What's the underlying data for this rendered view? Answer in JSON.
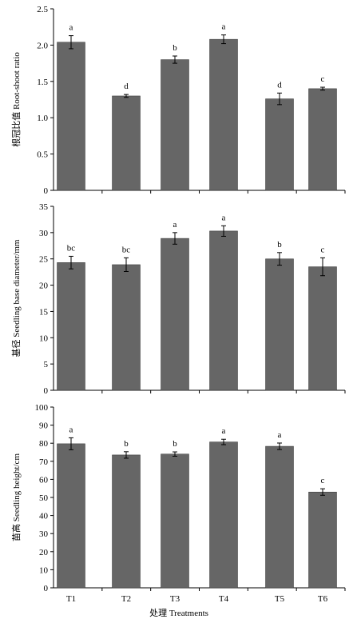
{
  "colors": {
    "bar": "#666666",
    "axis": "#000000",
    "error_bar": "#000000"
  },
  "chart_data": [
    {
      "type": "bar",
      "title": "",
      "categories": [
        "T1",
        "T2",
        "T3",
        "T4",
        "T5",
        "T6"
      ],
      "values": [
        2.04,
        1.3,
        1.8,
        2.08,
        1.26,
        1.4
      ],
      "errors": [
        0.09,
        0.02,
        0.05,
        0.06,
        0.08,
        0.02
      ],
      "significance": [
        "a",
        "d",
        "b",
        "a",
        "d",
        "c"
      ],
      "xlabel": "",
      "ylabel": "根冠比值 Root-shoot ratio",
      "ylim": [
        0,
        2.5
      ],
      "yticks": [
        "0",
        "0.5",
        "1.0",
        "1.5",
        "2.0",
        "2.5"
      ],
      "show_x_tick_labels": false
    },
    {
      "type": "bar",
      "title": "",
      "categories": [
        "T1",
        "T2",
        "T3",
        "T4",
        "T5",
        "T6"
      ],
      "values": [
        24.3,
        23.9,
        28.9,
        30.3,
        25.0,
        23.5
      ],
      "errors": [
        1.2,
        1.3,
        1.1,
        1.0,
        1.2,
        1.7
      ],
      "significance": [
        "bc",
        "bc",
        "a",
        "a",
        "b",
        "c"
      ],
      "xlabel": "",
      "ylabel": "基径 Seedling base diameter/mm",
      "ylim": [
        0,
        35
      ],
      "yticks": [
        "0",
        "5",
        "10",
        "15",
        "20",
        "25",
        "30",
        "35"
      ],
      "show_x_tick_labels": false
    },
    {
      "type": "bar",
      "title": "",
      "categories": [
        "T1",
        "T2",
        "T3",
        "T4",
        "T5",
        "T6"
      ],
      "values": [
        79.7,
        73.5,
        74.0,
        80.7,
        78.3,
        53.0
      ],
      "errors": [
        3.3,
        1.8,
        1.2,
        1.5,
        1.8,
        1.8
      ],
      "significance": [
        "a",
        "b",
        "b",
        "a",
        "a",
        "c"
      ],
      "xlabel": "处理 Treatments",
      "ylabel": "苗高 Seedling height/cm",
      "ylim": [
        0,
        100
      ],
      "yticks": [
        "0",
        "10",
        "20",
        "30",
        "40",
        "50",
        "60",
        "70",
        "80",
        "90",
        "100"
      ],
      "show_x_tick_labels": true
    }
  ]
}
